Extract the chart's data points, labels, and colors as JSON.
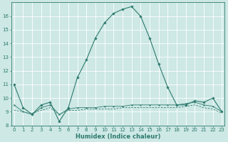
{
  "xlabel": "Humidex (Indice chaleur)",
  "background_color": "#cde8e5",
  "grid_color": "#ffffff",
  "line_color": "#2d7a6e",
  "x_values": [
    0,
    1,
    2,
    3,
    4,
    5,
    6,
    7,
    8,
    9,
    10,
    11,
    12,
    13,
    14,
    15,
    16,
    17,
    18,
    19,
    20,
    21,
    22,
    23
  ],
  "series1": [
    11.0,
    9.3,
    8.8,
    9.5,
    9.7,
    8.3,
    9.3,
    11.5,
    12.8,
    14.4,
    15.5,
    16.2,
    16.5,
    16.7,
    16.0,
    14.4,
    12.5,
    10.8,
    9.5,
    9.5,
    9.8,
    9.7,
    10.0,
    9.0
  ],
  "series2": [
    9.5,
    9.0,
    8.8,
    9.3,
    9.5,
    8.8,
    9.2,
    9.3,
    9.3,
    9.3,
    9.4,
    9.4,
    9.4,
    9.5,
    9.5,
    9.5,
    9.5,
    9.5,
    9.5,
    9.6,
    9.7,
    9.5,
    9.4,
    9.0
  ],
  "series3": [
    9.1,
    9.0,
    8.9,
    9.1,
    9.3,
    8.8,
    9.1,
    9.1,
    9.2,
    9.2,
    9.2,
    9.2,
    9.3,
    9.3,
    9.3,
    9.3,
    9.3,
    9.3,
    9.3,
    9.4,
    9.5,
    9.3,
    9.2,
    8.9
  ],
  "ylim_min": 8,
  "ylim_max": 17,
  "xlim_min": 0,
  "xlim_max": 23,
  "yticks": [
    8,
    9,
    10,
    11,
    12,
    13,
    14,
    15,
    16
  ],
  "xticks": [
    0,
    1,
    2,
    3,
    4,
    5,
    6,
    7,
    8,
    9,
    10,
    11,
    12,
    13,
    14,
    15,
    16,
    17,
    18,
    19,
    20,
    21,
    22,
    23
  ],
  "tick_fontsize": 5.0,
  "xlabel_fontsize": 6.0
}
